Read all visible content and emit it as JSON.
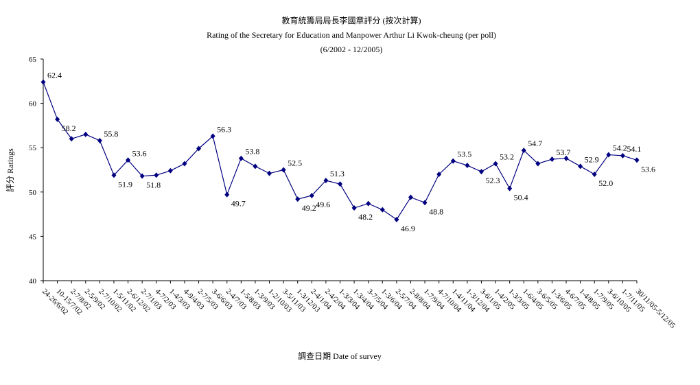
{
  "chart_data": {
    "type": "line",
    "title": "教育統籌局局長李國章評分 (按次計算)",
    "subtitle": "Rating of the Secretary for Education and Manpower Arthur Li Kwok-cheung  (per poll)",
    "period": "(6/2002 - 12/2005)",
    "y_label": "評分 Ratings",
    "x_label": "調查日期 Date of survey",
    "categories": [
      "24-26/6/02",
      "10-15/7/02",
      "2-7/8/02",
      "2-5/9/02",
      "2-7/10/02",
      "1-5/11/02",
      "2-6/12/02",
      "2-7/1/03",
      "4-7/2/03",
      "1-4/3/03",
      "4-9/4/03",
      "2-7/5/03",
      "3-6/6/03",
      "2-4/7/03",
      "1-5/8/03",
      "1-3/9/03",
      "1-2/10/03",
      "3-5/11/03",
      "1-3/12/03",
      "2-4/1/04",
      "2-4/2/04",
      "1-3/3/04",
      "1-3/4/04",
      "3-7/5/04",
      "1-3/6/04",
      "2-5/7/04",
      "2-8/8/04",
      "1-7/9/04",
      "4-7/10/04",
      "1-4/11/04",
      "1-3/12/04",
      "3-6/1/05",
      "1-4/2/05",
      "1-3/3/05",
      "1-6/4/05",
      "3-6/5/05",
      "1-3/6/05",
      "4-6/7/05",
      "1-4/8/05",
      "1-7/9/05",
      "3-6/10/05",
      "1-7/11/05",
      "30/11/05-5/12/05"
    ],
    "values": [
      62.4,
      58.2,
      56.0,
      56.5,
      55.8,
      51.9,
      53.6,
      51.8,
      51.9,
      52.4,
      53.2,
      54.9,
      56.3,
      49.7,
      53.8,
      52.9,
      52.1,
      52.5,
      49.2,
      49.6,
      51.3,
      50.9,
      48.2,
      48.7,
      48.0,
      46.9,
      49.4,
      48.8,
      52.0,
      53.5,
      53.0,
      52.3,
      53.2,
      50.4,
      54.7,
      53.2,
      53.7,
      53.8,
      52.9,
      52.0,
      54.2,
      54.1,
      53.6
    ],
    "value_labels": [
      "62.4",
      "58.2",
      null,
      null,
      "55.8",
      "51.9",
      "53.6",
      "51.8",
      null,
      null,
      null,
      null,
      "56.3",
      "49.7",
      "53.8",
      null,
      null,
      "52.5",
      "49.2",
      "49.6",
      "51.3",
      null,
      "48.2",
      null,
      null,
      "46.9",
      null,
      "48.8",
      null,
      "53.5",
      null,
      "52.3",
      "53.2",
      "50.4",
      "54.7",
      null,
      "53.7",
      null,
      "52.9",
      "52.0",
      "54.2",
      "54.1",
      "53.6"
    ],
    "color": "#000080",
    "ylim": [
      40,
      65
    ],
    "yticks": [
      40,
      45,
      50,
      55,
      60,
      65
    ]
  }
}
